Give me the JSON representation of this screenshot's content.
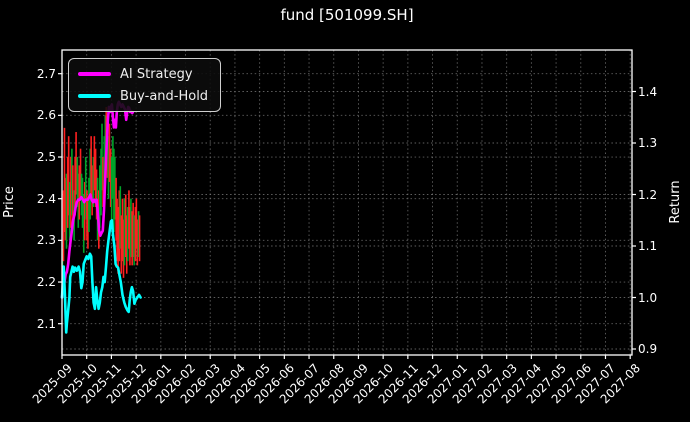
{
  "title": "fund [501099.SH]",
  "axes": {
    "left_label": "Price",
    "right_label": "Return",
    "left_ticks": [
      2.7,
      2.6,
      2.5,
      2.4,
      2.3,
      2.2,
      2.1
    ],
    "right_ticks": [
      1.4,
      1.3,
      1.2,
      1.1,
      1.0,
      0.9
    ],
    "x_ticks": [
      "2025-09",
      "2025-10",
      "2025-11",
      "2025-12",
      "2026-01",
      "2026-02",
      "2026-03",
      "2026-04",
      "2026-05",
      "2026-06",
      "2026-07",
      "2026-08",
      "2026-09",
      "2026-10",
      "2026-11",
      "2026-12",
      "2027-01",
      "2027-02",
      "2027-03",
      "2027-04",
      "2027-05",
      "2027-06",
      "2027-07",
      "2027-08"
    ]
  },
  "chart_data": {
    "type": "line",
    "title": "fund [501099.SH]",
    "xlabel": "",
    "ylabel_left": "Price",
    "ylabel_right": "Return",
    "x_unit": "months since 2025-09",
    "left_axis_range": [
      2.025,
      2.757
    ],
    "right_axis_range": [
      0.888,
      1.481
    ],
    "grid": true,
    "legend_position": "upper left",
    "background": "#000000",
    "series": [
      {
        "name": "AI Strategy",
        "axis": "return",
        "color": "#ff00ff",
        "points": [
          [
            0,
            1.0
          ],
          [
            0.05,
            1.02
          ],
          [
            0.1,
            1.03
          ],
          [
            0.15,
            1.045
          ],
          [
            0.2,
            1.05
          ],
          [
            0.25,
            1.065
          ],
          [
            0.3,
            1.09
          ],
          [
            0.35,
            1.11
          ],
          [
            0.4,
            1.13
          ],
          [
            0.45,
            1.15
          ],
          [
            0.5,
            1.16
          ],
          [
            0.55,
            1.175
          ],
          [
            0.6,
            1.185
          ],
          [
            0.65,
            1.19
          ],
          [
            0.72,
            1.19
          ],
          [
            0.78,
            1.195
          ],
          [
            0.85,
            1.19
          ],
          [
            0.9,
            1.185
          ],
          [
            0.95,
            1.19
          ],
          [
            1.0,
            1.19
          ],
          [
            1.05,
            1.19
          ],
          [
            1.1,
            1.195
          ],
          [
            1.15,
            1.2
          ],
          [
            1.2,
            1.19
          ],
          [
            1.25,
            1.185
          ],
          [
            1.3,
            1.19
          ],
          [
            1.35,
            1.185
          ],
          [
            1.4,
            1.19
          ],
          [
            1.45,
            1.165
          ],
          [
            1.5,
            1.13
          ],
          [
            1.55,
            1.12
          ],
          [
            1.6,
            1.125
          ],
          [
            1.65,
            1.13
          ],
          [
            1.7,
            1.17
          ],
          [
            1.74,
            1.22
          ],
          [
            1.78,
            1.27
          ],
          [
            1.82,
            1.31
          ],
          [
            1.86,
            1.345
          ],
          [
            1.9,
            1.37
          ],
          [
            1.94,
            1.36
          ],
          [
            1.98,
            1.37
          ],
          [
            2.02,
            1.375
          ],
          [
            2.06,
            1.35
          ],
          [
            2.1,
            1.33
          ],
          [
            2.14,
            1.345
          ],
          [
            2.18,
            1.33
          ],
          [
            2.22,
            1.36
          ],
          [
            2.26,
            1.375
          ],
          [
            2.3,
            1.38
          ],
          [
            2.35,
            1.375
          ],
          [
            2.4,
            1.37
          ],
          [
            2.45,
            1.375
          ],
          [
            2.5,
            1.37
          ],
          [
            2.55,
            1.365
          ],
          [
            2.6,
            1.345
          ],
          [
            2.64,
            1.36
          ],
          [
            2.68,
            1.37
          ],
          [
            2.72,
            1.368
          ],
          [
            2.76,
            1.36
          ],
          [
            2.8,
            1.362
          ],
          [
            2.84,
            1.358
          ],
          [
            2.87,
            1.36
          ]
        ]
      },
      {
        "name": "Buy-and-Hold",
        "axis": "return",
        "color": "#00ffff",
        "points": [
          [
            0,
            1.0
          ],
          [
            0.07,
            1.06
          ],
          [
            0.12,
            1.0
          ],
          [
            0.17,
            0.932
          ],
          [
            0.2,
            0.95
          ],
          [
            0.25,
            0.975
          ],
          [
            0.3,
            1.0
          ],
          [
            0.33,
            1.04
          ],
          [
            0.38,
            1.05
          ],
          [
            0.43,
            1.06
          ],
          [
            0.48,
            1.05
          ],
          [
            0.53,
            1.058
          ],
          [
            0.6,
            1.052
          ],
          [
            0.67,
            1.06
          ],
          [
            0.73,
            1.05
          ],
          [
            0.78,
            1.018
          ],
          [
            0.83,
            1.03
          ],
          [
            0.88,
            1.065
          ],
          [
            0.93,
            1.072
          ],
          [
            1.0,
            1.08
          ],
          [
            1.07,
            1.075
          ],
          [
            1.13,
            1.085
          ],
          [
            1.18,
            1.08
          ],
          [
            1.23,
            1.03
          ],
          [
            1.28,
            0.99
          ],
          [
            1.33,
            0.978
          ],
          [
            1.38,
            1.02
          ],
          [
            1.43,
            0.995
          ],
          [
            1.48,
            0.978
          ],
          [
            1.53,
            0.99
          ],
          [
            1.58,
            1.01
          ],
          [
            1.63,
            1.02
          ],
          [
            1.68,
            1.04
          ],
          [
            1.73,
            1.03
          ],
          [
            1.78,
            1.06
          ],
          [
            1.83,
            1.09
          ],
          [
            1.88,
            1.11
          ],
          [
            1.93,
            1.13
          ],
          [
            1.98,
            1.148
          ],
          [
            2.02,
            1.15
          ],
          [
            2.07,
            1.12
          ],
          [
            2.12,
            1.1
          ],
          [
            2.17,
            1.065
          ],
          [
            2.22,
            1.06
          ],
          [
            2.27,
            1.058
          ],
          [
            2.32,
            1.045
          ],
          [
            2.38,
            1.03
          ],
          [
            2.45,
            1.005
          ],
          [
            2.52,
            0.99
          ],
          [
            2.58,
            0.982
          ],
          [
            2.65,
            0.975
          ],
          [
            2.7,
            0.972
          ],
          [
            2.74,
            0.995
          ],
          [
            2.78,
            1.01
          ],
          [
            2.83,
            1.02
          ],
          [
            2.88,
            1.012
          ],
          [
            2.93,
            0.988
          ],
          [
            2.98,
            0.995
          ],
          [
            3.05,
            1.0
          ],
          [
            3.12,
            1.005
          ],
          [
            3.18,
            1.0
          ]
        ]
      }
    ],
    "price_bars": {
      "axis": "price",
      "up_color": "#00a42a",
      "down_color": "#ff2020",
      "items": [
        [
          0.02,
          2.2,
          2.28,
          "u"
        ],
        [
          0.06,
          2.25,
          2.42,
          "d"
        ],
        [
          0.1,
          2.32,
          2.57,
          "d"
        ],
        [
          0.14,
          2.3,
          2.45,
          "d"
        ],
        [
          0.18,
          2.28,
          2.46,
          "u"
        ],
        [
          0.23,
          2.33,
          2.5,
          "d"
        ],
        [
          0.27,
          2.36,
          2.55,
          "d"
        ],
        [
          0.31,
          2.3,
          2.44,
          "u"
        ],
        [
          0.36,
          2.33,
          2.5,
          "d"
        ],
        [
          0.4,
          2.36,
          2.52,
          "u"
        ],
        [
          0.44,
          2.33,
          2.48,
          "d"
        ],
        [
          0.49,
          2.3,
          2.42,
          "u"
        ],
        [
          0.53,
          2.36,
          2.5,
          "d"
        ],
        [
          0.57,
          2.41,
          2.56,
          "d"
        ],
        [
          0.62,
          2.38,
          2.5,
          "u"
        ],
        [
          0.66,
          2.33,
          2.46,
          "u"
        ],
        [
          0.7,
          2.35,
          2.48,
          "d"
        ],
        [
          0.75,
          2.4,
          2.52,
          "d"
        ],
        [
          0.79,
          2.36,
          2.46,
          "u"
        ],
        [
          0.83,
          2.33,
          2.45,
          "u"
        ],
        [
          0.88,
          2.27,
          2.41,
          "u"
        ],
        [
          0.92,
          2.3,
          2.44,
          "d"
        ],
        [
          0.96,
          2.35,
          2.5,
          "u"
        ],
        [
          1.01,
          2.3,
          2.42,
          "d"
        ],
        [
          1.05,
          2.28,
          2.4,
          "d"
        ],
        [
          1.09,
          2.32,
          2.45,
          "u"
        ],
        [
          1.14,
          2.35,
          2.52,
          "u"
        ],
        [
          1.18,
          2.4,
          2.55,
          "d"
        ],
        [
          1.22,
          2.36,
          2.48,
          "d"
        ],
        [
          1.27,
          2.38,
          2.5,
          "u"
        ],
        [
          1.31,
          2.42,
          2.55,
          "d"
        ],
        [
          1.36,
          2.38,
          2.52,
          "d"
        ],
        [
          1.4,
          2.35,
          2.47,
          "d"
        ],
        [
          1.44,
          2.3,
          2.45,
          "u"
        ],
        [
          1.49,
          2.28,
          2.42,
          "d"
        ],
        [
          1.53,
          2.33,
          2.48,
          "u"
        ],
        [
          1.58,
          2.36,
          2.52,
          "u"
        ],
        [
          1.62,
          2.42,
          2.58,
          "u"
        ],
        [
          1.66,
          2.38,
          2.5,
          "d"
        ],
        [
          1.71,
          2.42,
          2.55,
          "u"
        ],
        [
          1.75,
          2.45,
          2.6,
          "u"
        ],
        [
          1.79,
          2.48,
          2.62,
          "d"
        ],
        [
          1.84,
          2.45,
          2.58,
          "d"
        ],
        [
          1.88,
          2.4,
          2.55,
          "u"
        ],
        [
          1.92,
          2.44,
          2.58,
          "d"
        ],
        [
          1.97,
          2.38,
          2.52,
          "d"
        ],
        [
          2.01,
          2.35,
          2.5,
          "u"
        ],
        [
          2.06,
          2.4,
          2.55,
          "u"
        ],
        [
          2.1,
          2.32,
          2.52,
          "u"
        ],
        [
          2.14,
          2.35,
          2.5,
          "u"
        ],
        [
          2.19,
          2.3,
          2.45,
          "d"
        ],
        [
          2.23,
          2.25,
          2.4,
          "d"
        ],
        [
          2.27,
          2.22,
          2.38,
          "d"
        ],
        [
          2.32,
          2.25,
          2.42,
          "d"
        ],
        [
          2.36,
          2.28,
          2.43,
          "u"
        ],
        [
          2.4,
          2.22,
          2.36,
          "d"
        ],
        [
          2.45,
          2.25,
          2.4,
          "d"
        ],
        [
          2.49,
          2.21,
          2.35,
          "d"
        ],
        [
          2.53,
          2.24,
          2.4,
          "u"
        ],
        [
          2.58,
          2.26,
          2.41,
          "d"
        ],
        [
          2.62,
          2.22,
          2.36,
          "d"
        ],
        [
          2.66,
          2.25,
          2.38,
          "u"
        ],
        [
          2.71,
          2.28,
          2.42,
          "d"
        ],
        [
          2.75,
          2.24,
          2.38,
          "d"
        ],
        [
          2.79,
          2.26,
          2.4,
          "u"
        ],
        [
          2.84,
          2.24,
          2.37,
          "d"
        ],
        [
          2.88,
          2.26,
          2.39,
          "d"
        ],
        [
          2.92,
          2.24,
          2.36,
          "u"
        ],
        [
          2.97,
          2.25,
          2.38,
          "d"
        ],
        [
          3.01,
          2.28,
          2.4,
          "d"
        ],
        [
          3.05,
          2.24,
          2.35,
          "d"
        ],
        [
          3.1,
          2.26,
          2.37,
          "u"
        ],
        [
          3.14,
          2.25,
          2.36,
          "d"
        ]
      ]
    }
  },
  "colors": {
    "background": "#000000",
    "text": "#ffffff",
    "grid": "#7f7f7f",
    "spine": "#ffffff",
    "ai_strategy": "#ff00ff",
    "buy_and_hold": "#00ffff",
    "bar_up": "#00a42a",
    "bar_down": "#ff2020"
  }
}
